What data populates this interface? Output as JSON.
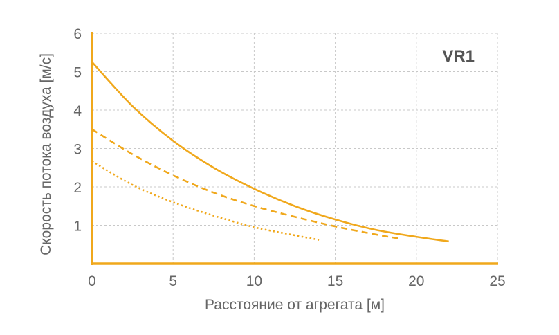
{
  "chart_data": {
    "type": "line",
    "title": "VR1",
    "xlabel": "Расстояние от агрегата [м]",
    "ylabel": "Скорость потока воздуха [м/с]",
    "xlim": [
      0,
      25
    ],
    "ylim": [
      0,
      6
    ],
    "xticks": [
      "0",
      "5",
      "10",
      "15",
      "20",
      "25"
    ],
    "yticks": [
      "1",
      "2",
      "3",
      "4",
      "5",
      "6"
    ],
    "grid": true,
    "color": "#f0a81c",
    "grid_color": "#c8c8c8",
    "series": [
      {
        "style": "solid",
        "x": [
          0,
          2.5,
          5,
          7.5,
          10,
          12.5,
          15,
          17.5,
          20,
          22
        ],
        "y": [
          5.25,
          4.1,
          3.2,
          2.5,
          1.95,
          1.5,
          1.15,
          0.88,
          0.7,
          0.58
        ]
      },
      {
        "style": "dashed",
        "x": [
          0,
          2.5,
          5,
          7.5,
          10,
          12.5,
          15,
          17.5,
          19
        ],
        "y": [
          3.5,
          2.85,
          2.3,
          1.85,
          1.5,
          1.22,
          0.97,
          0.76,
          0.65
        ]
      },
      {
        "style": "dotted",
        "x": [
          0,
          2.5,
          5,
          7.5,
          10,
          12,
          14
        ],
        "y": [
          2.67,
          2.05,
          1.6,
          1.25,
          0.95,
          0.78,
          0.62
        ]
      }
    ]
  }
}
